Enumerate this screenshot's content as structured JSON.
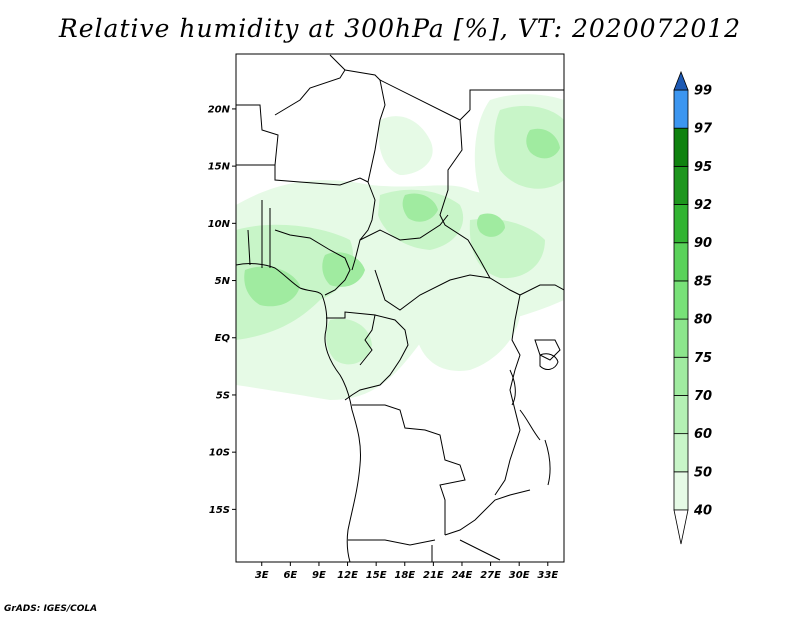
{
  "title": "Relative humidity at 300hPa [%], VT: 2020072012",
  "credit": "GrADS: IGES/COLA",
  "map": {
    "lat_ticks": [
      {
        "label": "20N",
        "value": 20
      },
      {
        "label": "15N",
        "value": 15
      },
      {
        "label": "10N",
        "value": 10
      },
      {
        "label": "5N",
        "value": 5
      },
      {
        "label": "EQ",
        "value": 0
      },
      {
        "label": "5S",
        "value": -5
      },
      {
        "label": "10S",
        "value": -10
      },
      {
        "label": "15S",
        "value": -15
      }
    ],
    "lon_ticks": [
      {
        "label": "3E",
        "value": 3
      },
      {
        "label": "6E",
        "value": 6
      },
      {
        "label": "9E",
        "value": 9
      },
      {
        "label": "12E",
        "value": 12
      },
      {
        "label": "15E",
        "value": 15
      },
      {
        "label": "18E",
        "value": 18
      },
      {
        "label": "21E",
        "value": 21
      },
      {
        "label": "24E",
        "value": 24
      },
      {
        "label": "27E",
        "value": 27
      },
      {
        "label": "30E",
        "value": 30
      },
      {
        "label": "33E",
        "value": 33
      }
    ],
    "lon_range": [
      0.3,
      34.7
    ],
    "lat_range": [
      -19.6,
      24.8
    ]
  },
  "colorbar": {
    "levels": [
      "40",
      "50",
      "60",
      "70",
      "75",
      "80",
      "85",
      "90",
      "92",
      "95",
      "97",
      "99"
    ],
    "colors": [
      "#e6fae6",
      "#c8f5c8",
      "#b4f0b4",
      "#a0eba0",
      "#8ce68c",
      "#78e178",
      "#5ad25a",
      "#32b432",
      "#1e961e",
      "#0f820f",
      "#3c96f0",
      "#2873d2",
      "#1e5ab4"
    ],
    "top_color": "#1e5ab4",
    "bottom_color": "#ffffff"
  },
  "colors": {
    "humid_light": "#e6fae6",
    "humid_mid": "#c8f5c8",
    "humid_high": "#a0eba0"
  }
}
